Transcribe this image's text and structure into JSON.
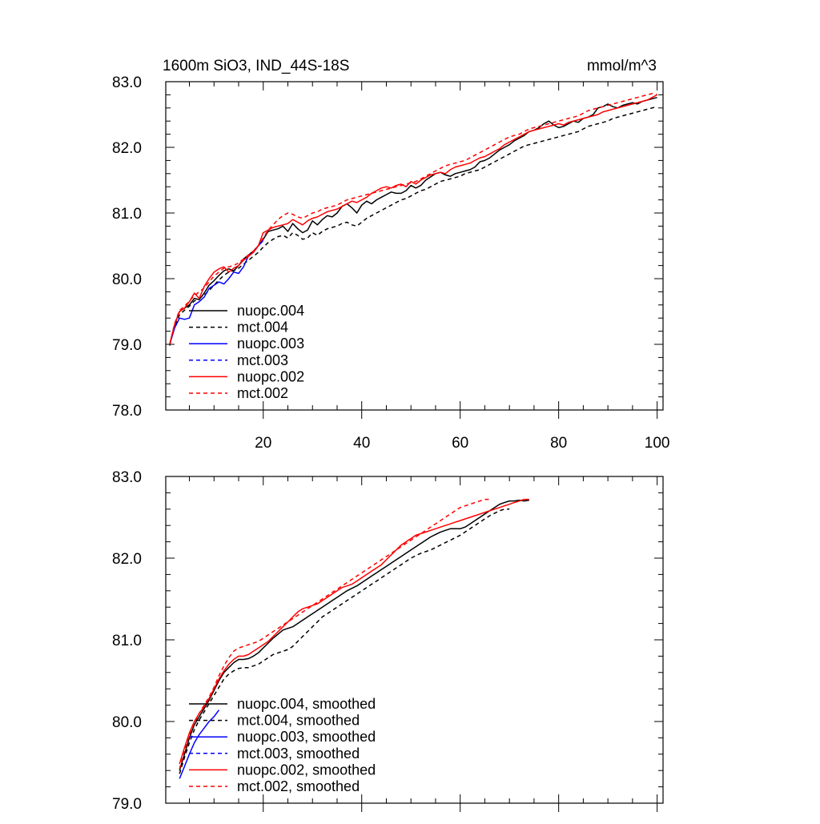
{
  "chart_data": [
    {
      "type": "line",
      "title": "1600m SiO3, IND_44S-18S",
      "units": "mmol/m^3",
      "xlabel": "",
      "ylabel": "",
      "xlim": [
        0.2,
        101.2
      ],
      "ylim": [
        78.0,
        83.0
      ],
      "x_ticks": [
        20,
        40,
        60,
        80,
        100
      ],
      "x_tick_labels": [
        "20",
        "40",
        "60",
        "80",
        "100"
      ],
      "y_ticks": [
        78.0,
        79.0,
        80.0,
        81.0,
        82.0,
        83.0
      ],
      "y_tick_labels": [
        "78.0",
        "79.0",
        "80.0",
        "81.0",
        "82.0",
        "83.0"
      ],
      "legend_position": "bottom-left",
      "series": [
        {
          "name": "nuopc.004",
          "color": "#000000",
          "dash": "solid",
          "x_start": 1,
          "values": [
            79.0,
            79.3,
            79.5,
            79.55,
            79.6,
            79.7,
            79.68,
            79.78,
            79.9,
            79.97,
            80.05,
            80.12,
            80.15,
            80.12,
            80.2,
            80.3,
            80.36,
            80.42,
            80.5,
            80.6,
            80.72,
            80.74,
            80.76,
            80.8,
            80.72,
            80.84,
            80.76,
            80.7,
            80.74,
            80.88,
            80.82,
            80.9,
            80.96,
            80.94,
            81.0,
            81.1,
            81.14,
            81.08,
            81.0,
            81.12,
            81.18,
            81.14,
            81.2,
            81.24,
            81.28,
            81.32,
            81.3,
            81.3,
            81.34,
            81.42,
            81.38,
            81.42,
            81.5,
            81.55,
            81.6,
            81.62,
            81.58,
            81.56,
            81.6,
            81.62,
            81.64,
            81.66,
            81.7,
            81.78,
            81.8,
            81.84,
            81.9,
            81.96,
            82.0,
            82.04,
            82.1,
            82.14,
            82.18,
            82.24,
            82.26,
            82.3,
            82.36,
            82.4,
            82.34,
            82.3,
            82.32,
            82.36,
            82.4,
            82.38,
            82.44,
            82.46,
            82.5,
            82.6,
            82.62,
            82.66,
            82.62,
            82.6,
            82.64,
            82.66,
            82.68,
            82.66,
            82.7,
            82.72,
            82.74,
            82.76
          ]
        },
        {
          "name": "mct.004",
          "color": "#000000",
          "dash": "dashed",
          "x_start": 1,
          "values": [
            78.98,
            79.28,
            79.45,
            79.52,
            79.58,
            79.66,
            79.7,
            79.75,
            79.82,
            79.9,
            79.98,
            80.05,
            80.1,
            80.12,
            80.16,
            80.22,
            80.28,
            80.34,
            80.4,
            80.48,
            80.55,
            80.6,
            80.64,
            80.66,
            80.62,
            80.7,
            80.66,
            80.6,
            80.62,
            80.7,
            80.66,
            80.72,
            80.76,
            80.78,
            80.8,
            80.84,
            80.86,
            80.82,
            80.8,
            80.86,
            80.92,
            80.96,
            81.0,
            81.04,
            81.08,
            81.12,
            81.16,
            81.2,
            81.22,
            81.26,
            81.3,
            81.34,
            81.36,
            81.4,
            81.44,
            81.48,
            81.5,
            81.52,
            81.54,
            81.56,
            81.6,
            81.62,
            81.64,
            81.66,
            81.7,
            81.74,
            81.78,
            81.82,
            81.86,
            81.9,
            81.94,
            81.98,
            82.02,
            82.04,
            82.06,
            82.08,
            82.1,
            82.12,
            82.14,
            82.16,
            82.18,
            82.2,
            82.22,
            82.24,
            82.28,
            82.32,
            82.34,
            82.36,
            82.38,
            82.4,
            82.44,
            82.46,
            82.48,
            82.5,
            82.52,
            82.54,
            82.56,
            82.58,
            82.6,
            82.62
          ]
        },
        {
          "name": "nuopc.003",
          "color": "#0000ff",
          "dash": "solid",
          "x_start": 1,
          "values": [
            79.0,
            79.25,
            79.4,
            79.38,
            79.4,
            79.6,
            79.65,
            79.72,
            79.85,
            79.9,
            79.95,
            79.92,
            80.0,
            80.1,
            80.08,
            80.18,
            80.35,
            80.4,
            80.5,
            80.58
          ]
        },
        {
          "name": "mct.003",
          "color": "#0000ff",
          "dash": "dashed",
          "x_start": 1,
          "values": []
        },
        {
          "name": "nuopc.002",
          "color": "#ff0000",
          "dash": "solid",
          "x_start": 1,
          "values": [
            79.0,
            79.3,
            79.5,
            79.55,
            79.65,
            79.78,
            79.7,
            79.88,
            80.0,
            80.1,
            80.15,
            80.18,
            80.1,
            80.16,
            80.2,
            80.28,
            80.34,
            80.4,
            80.5,
            80.7,
            80.74,
            80.78,
            80.8,
            80.82,
            80.84,
            80.9,
            80.86,
            80.82,
            80.88,
            80.92,
            80.94,
            80.98,
            81.02,
            81.04,
            81.06,
            81.1,
            81.14,
            81.18,
            81.16,
            81.2,
            81.24,
            81.3,
            81.34,
            81.38,
            81.4,
            81.38,
            81.42,
            81.44,
            81.4,
            81.48,
            81.44,
            81.5,
            81.54,
            81.58,
            81.6,
            81.62,
            81.6,
            81.66,
            81.7,
            81.72,
            81.74,
            81.76,
            81.8,
            81.84,
            81.86,
            81.9,
            81.94,
            81.98,
            82.04,
            82.08,
            82.12,
            82.16,
            82.2,
            82.24,
            82.26,
            82.28,
            82.3,
            82.32,
            82.34,
            82.36,
            82.34,
            82.38,
            82.4,
            82.42,
            82.44,
            82.46,
            82.48,
            82.5,
            82.54,
            82.56,
            82.58,
            82.6,
            82.62,
            82.64,
            82.66,
            82.68,
            82.7,
            82.72,
            82.76,
            82.8
          ]
        },
        {
          "name": "mct.002",
          "color": "#ff0000",
          "dash": "dashed",
          "x_start": 1,
          "values": [
            79.0,
            79.32,
            79.52,
            79.58,
            79.66,
            79.74,
            79.8,
            79.86,
            79.95,
            80.04,
            80.1,
            80.16,
            80.18,
            80.2,
            80.24,
            80.3,
            80.36,
            80.42,
            80.5,
            80.62,
            80.74,
            80.82,
            80.9,
            80.96,
            81.0,
            80.98,
            80.94,
            80.92,
            80.96,
            81.0,
            81.02,
            81.06,
            81.08,
            81.1,
            81.12,
            81.16,
            81.2,
            81.22,
            81.24,
            81.26,
            81.28,
            81.3,
            81.32,
            81.34,
            81.36,
            81.38,
            81.4,
            81.42,
            81.44,
            81.46,
            81.48,
            81.52,
            81.56,
            81.6,
            81.64,
            81.68,
            81.72,
            81.74,
            81.76,
            81.78,
            81.8,
            81.84,
            81.88,
            81.92,
            81.96,
            82.0,
            82.04,
            82.08,
            82.12,
            82.16,
            82.18,
            82.2,
            82.24,
            82.28,
            82.3,
            82.32,
            82.34,
            82.36,
            82.38,
            82.4,
            82.42,
            82.44,
            82.46,
            82.48,
            82.52,
            82.56,
            82.58,
            82.6,
            82.62,
            82.64,
            82.66,
            82.68,
            82.7,
            82.72,
            82.74,
            82.76,
            82.78,
            82.8,
            82.82,
            82.8
          ]
        }
      ]
    },
    {
      "type": "line",
      "title": "",
      "xlabel": "",
      "ylabel": "",
      "xlim": [
        0.2,
        101.2
      ],
      "ylim": [
        79.0,
        83.0
      ],
      "x_ticks": [
        20,
        40,
        60,
        80,
        100
      ],
      "y_ticks": [
        79.0,
        80.0,
        81.0,
        82.0,
        83.0
      ],
      "y_tick_labels": [
        "79.0",
        "80.0",
        "81.0",
        "82.0",
        "83.0"
      ],
      "legend_position": "bottom-left",
      "series": [
        {
          "name": "nuopc.004, smoothed",
          "color": "#000000",
          "dash": "solid",
          "x_start": 3,
          "values": [
            79.4,
            79.6,
            79.8,
            79.96,
            80.06,
            80.16,
            80.26,
            80.38,
            80.5,
            80.6,
            80.66,
            80.72,
            80.76,
            80.76,
            80.77,
            80.8,
            80.84,
            80.9,
            80.96,
            81.02,
            81.07,
            81.12,
            81.14,
            81.16,
            81.2,
            81.24,
            81.28,
            81.32,
            81.36,
            81.4,
            81.44,
            81.48,
            81.52,
            81.56,
            81.6,
            81.63,
            81.66,
            81.7,
            81.74,
            81.78,
            81.82,
            81.86,
            81.9,
            81.94,
            81.98,
            82.02,
            82.06,
            82.1,
            82.14,
            82.18,
            82.22,
            82.26,
            82.29,
            82.32,
            82.34,
            82.36,
            82.36,
            82.36,
            82.38,
            82.42,
            82.46,
            82.5,
            82.54,
            82.58,
            82.62,
            82.66,
            82.68,
            82.7,
            82.7,
            82.71,
            82.7,
            82.71
          ]
        },
        {
          "name": "mct.004, smoothed",
          "color": "#000000",
          "dash": "dashed",
          "x_start": 3,
          "values": [
            79.36,
            79.56,
            79.74,
            79.9,
            80.02,
            80.12,
            80.22,
            80.32,
            80.42,
            80.52,
            80.58,
            80.62,
            80.65,
            80.66,
            80.66,
            80.68,
            80.7,
            80.74,
            80.78,
            80.82,
            80.84,
            80.86,
            80.88,
            80.92,
            80.98,
            81.04,
            81.1,
            81.16,
            81.22,
            81.28,
            81.32,
            81.36,
            81.4,
            81.44,
            81.48,
            81.52,
            81.56,
            81.6,
            81.64,
            81.68,
            81.72,
            81.76,
            81.8,
            81.84,
            81.88,
            81.92,
            81.96,
            82.0,
            82.03,
            82.06,
            82.08,
            82.1,
            82.13,
            82.16,
            82.19,
            82.22,
            82.25,
            82.28,
            82.32,
            82.36,
            82.4,
            82.44,
            82.48,
            82.52,
            82.55,
            82.58,
            82.6,
            82.6
          ]
        },
        {
          "name": "nuopc.003, smoothed",
          "color": "#0000ff",
          "dash": "solid",
          "x_start": 3,
          "values": [
            79.3,
            79.45,
            79.6,
            79.74,
            79.84,
            79.92,
            80.0,
            80.06,
            80.14
          ]
        },
        {
          "name": "mct.003, smoothed",
          "color": "#0000ff",
          "dash": "dashed",
          "x_start": 3,
          "values": []
        },
        {
          "name": "nuopc.002, smoothed",
          "color": "#ff0000",
          "dash": "solid",
          "x_start": 3,
          "values": [
            79.48,
            79.68,
            79.86,
            80.0,
            80.1,
            80.18,
            80.28,
            80.4,
            80.52,
            80.62,
            80.7,
            80.76,
            80.8,
            80.8,
            80.82,
            80.86,
            80.9,
            80.94,
            80.98,
            81.04,
            81.1,
            81.16,
            81.22,
            81.28,
            81.34,
            81.38,
            81.4,
            81.42,
            81.44,
            81.48,
            81.52,
            81.56,
            81.6,
            81.64,
            81.66,
            81.68,
            81.72,
            81.76,
            81.8,
            81.84,
            81.88,
            81.92,
            81.98,
            82.04,
            82.1,
            82.16,
            82.2,
            82.24,
            82.28,
            82.3,
            82.32,
            82.34,
            82.36,
            82.38,
            82.4,
            82.42,
            82.44,
            82.46,
            82.48,
            82.5,
            82.52,
            82.54,
            82.56,
            82.58,
            82.6,
            82.62,
            82.64,
            82.66,
            82.68,
            82.7,
            82.72,
            82.72
          ]
        },
        {
          "name": "mct.002, smoothed",
          "color": "#ff0000",
          "dash": "dashed",
          "x_start": 3,
          "values": [
            79.42,
            79.64,
            79.84,
            79.98,
            80.1,
            80.2,
            80.3,
            80.42,
            80.56,
            80.68,
            80.78,
            80.86,
            80.9,
            80.92,
            80.94,
            80.96,
            80.98,
            81.02,
            81.06,
            81.1,
            81.14,
            81.18,
            81.22,
            81.26,
            81.3,
            81.34,
            81.38,
            81.42,
            81.46,
            81.5,
            81.54,
            81.58,
            81.62,
            81.66,
            81.7,
            81.74,
            81.78,
            81.82,
            81.86,
            81.9,
            81.94,
            81.98,
            82.02,
            82.06,
            82.1,
            82.14,
            82.18,
            82.22,
            82.26,
            82.3,
            82.34,
            82.38,
            82.42,
            82.46,
            82.5,
            82.54,
            82.58,
            82.62,
            82.64,
            82.66,
            82.68,
            82.7,
            82.72,
            82.72
          ]
        }
      ]
    }
  ]
}
